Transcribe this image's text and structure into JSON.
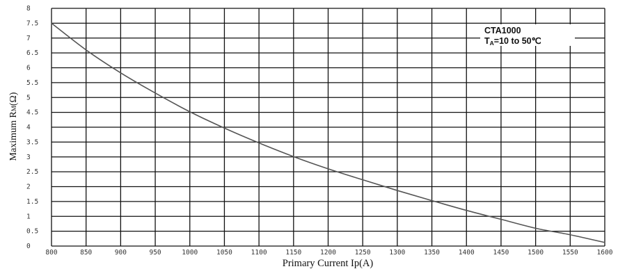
{
  "chart_data": {
    "type": "line",
    "title": "",
    "xlabel": "Primary Current Ip(A)",
    "ylabel": "Maximum R",
    "ylabel_subscript": "M",
    "ylabel_unit": "(Ω)",
    "xlim": [
      800,
      1600
    ],
    "ylim": [
      0,
      8
    ],
    "x_ticks": [
      "800",
      "850",
      "900",
      "950",
      "1000",
      "1050",
      "1100",
      "1150",
      "1200",
      "1250",
      "1300",
      "1350",
      "1400",
      "1450",
      "1500",
      "1550",
      "1600"
    ],
    "y_ticks": [
      "0",
      "0.5",
      "1",
      "1.5",
      "2",
      "2.5",
      "3",
      "3.5",
      "4",
      "4.5",
      "5",
      "5.5",
      "6",
      "6.5",
      "7",
      "7.5",
      "8"
    ],
    "grid": true,
    "annotation": {
      "line1": "CTA1000",
      "line2_prefix": "T",
      "line2_sub": "A",
      "line2_suffix": "=10 to 50℃"
    },
    "series": [
      {
        "x": [
          800,
          850,
          900,
          950,
          1000,
          1050,
          1100,
          1150,
          1200,
          1250,
          1300,
          1350,
          1400,
          1450,
          1500,
          1550,
          1600
        ],
        "y": [
          7.5,
          6.6,
          5.83,
          5.15,
          4.52,
          3.97,
          3.47,
          3.01,
          2.6,
          2.23,
          1.87,
          1.53,
          1.2,
          0.9,
          0.6,
          0.38,
          0.12
        ]
      }
    ],
    "colors": {
      "curve": "#555555",
      "grid": "#111111",
      "background": "#ffffff"
    }
  }
}
